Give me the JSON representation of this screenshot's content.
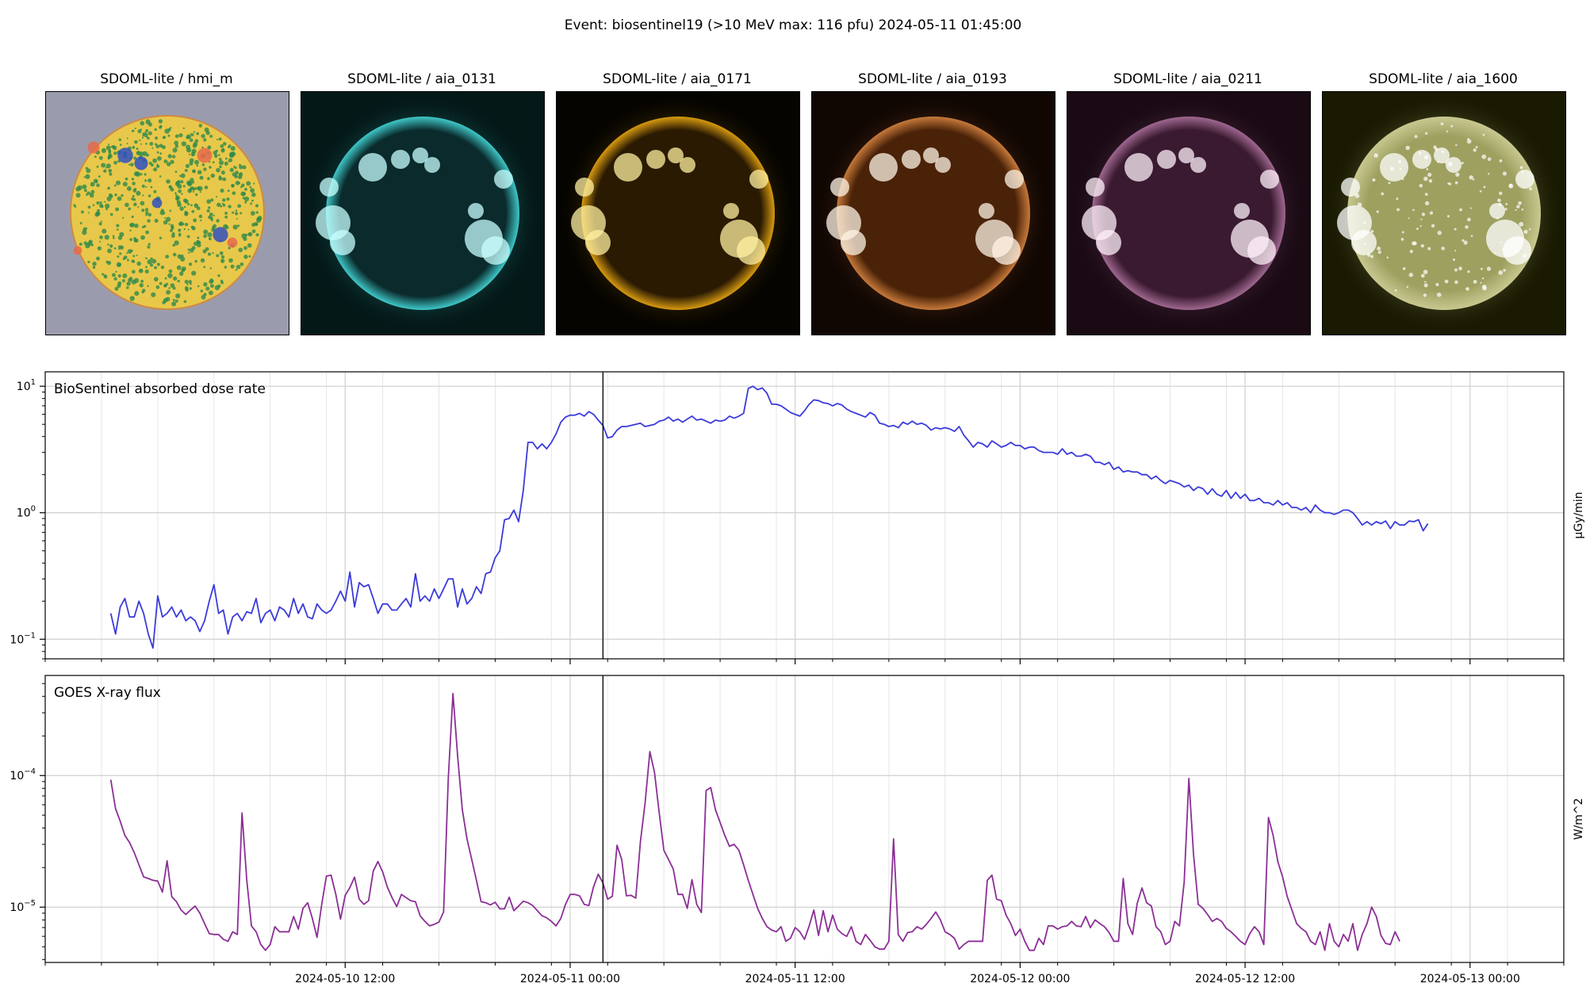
{
  "suptitle": "Event: biosentinel19 (>10 MeV max: 116 pfu) 2024-05-11 01:45:00",
  "images": [
    {
      "title": "SDOML-lite / hmi_m",
      "kind": "hmi",
      "colors": {
        "bg": "#9a9cae",
        "base": "#e8c84a",
        "spot": "#2e8a4a",
        "hot": "#e86a4a",
        "cold": "#3050c0"
      }
    },
    {
      "title": "SDOML-lite / aia_0131",
      "kind": "euv",
      "colors": {
        "bg": "#041818",
        "disk": "#0a2a2c",
        "limb": "#3fc8c8",
        "bright": "#c8ffff"
      }
    },
    {
      "title": "SDOML-lite / aia_0171",
      "kind": "euv",
      "colors": {
        "bg": "#060400",
        "disk": "#2a1a02",
        "limb": "#d89a10",
        "bright": "#fff0a0"
      }
    },
    {
      "title": "SDOML-lite / aia_0193",
      "kind": "euv",
      "colors": {
        "bg": "#100602",
        "disk": "#4a2208",
        "limb": "#c87a3a",
        "bright": "#fff4e6"
      }
    },
    {
      "title": "SDOML-lite / aia_0211",
      "kind": "euv",
      "colors": {
        "bg": "#1a0a14",
        "disk": "#3a1a30",
        "limb": "#a06890",
        "bright": "#fff0fa"
      }
    },
    {
      "title": "SDOML-lite / aia_1600",
      "kind": "uv",
      "colors": {
        "bg": "#1a1a02",
        "disk": "#9ea060",
        "limb": "#c8c890",
        "bright": "#ffffff"
      }
    }
  ],
  "chart_data": [
    {
      "type": "line",
      "title": "BioSentinel absorbed dose rate",
      "ylabel": "µGy/min",
      "yscale": "log",
      "ylim": [
        0.07,
        13
      ],
      "color": "#3b3bdc",
      "event_time": "2024-05-11 01:45",
      "x_start": "2024-05-09 23:30",
      "x_step_minutes": 15,
      "xlim": [
        "2024-05-09 20:00",
        "2024-05-13 05:00"
      ],
      "xticks": [
        "2024-05-10 12:00",
        "2024-05-11 00:00",
        "2024-05-11 12:00",
        "2024-05-12 00:00",
        "2024-05-12 12:00",
        "2024-05-13 00:00"
      ],
      "ytick_labels": [
        "10^-1",
        "10^0",
        "10^1"
      ],
      "ytick_values": [
        0.1,
        1,
        10
      ],
      "y": [
        0.16,
        0.11,
        0.18,
        0.21,
        0.15,
        0.15,
        0.2,
        0.16,
        0.11,
        0.085,
        0.22,
        0.15,
        0.16,
        0.18,
        0.15,
        0.17,
        0.14,
        0.15,
        0.14,
        0.115,
        0.14,
        0.2,
        0.27,
        0.16,
        0.17,
        0.11,
        0.15,
        0.16,
        0.14,
        0.165,
        0.16,
        0.21,
        0.135,
        0.16,
        0.17,
        0.14,
        0.18,
        0.17,
        0.15,
        0.21,
        0.16,
        0.19,
        0.15,
        0.145,
        0.19,
        0.17,
        0.16,
        0.17,
        0.2,
        0.24,
        0.2,
        0.34,
        0.18,
        0.28,
        0.26,
        0.27,
        0.21,
        0.16,
        0.19,
        0.19,
        0.17,
        0.17,
        0.19,
        0.21,
        0.18,
        0.33,
        0.2,
        0.22,
        0.2,
        0.25,
        0.21,
        0.25,
        0.3,
        0.3,
        0.18,
        0.25,
        0.19,
        0.21,
        0.26,
        0.23,
        0.33,
        0.34,
        0.44,
        0.5,
        0.88,
        0.9,
        1.05,
        0.85,
        1.5,
        3.6,
        3.6,
        3.2,
        3.5,
        3.2,
        3.6,
        4.2,
        5.2,
        5.7,
        5.9,
        5.9,
        6.1,
        5.8,
        6.3,
        6.0,
        5.4,
        4.9,
        3.9,
        4.0,
        4.5,
        4.8,
        4.8,
        4.9,
        5.0,
        5.1,
        4.8,
        4.9,
        5.0,
        5.3,
        5.4,
        5.7,
        5.3,
        5.5,
        5.2,
        5.5,
        5.8,
        5.4,
        5.5,
        5.3,
        5.1,
        5.4,
        5.3,
        5.4,
        5.8,
        5.6,
        5.8,
        6.1,
        9.6,
        10.0,
        9.4,
        9.7,
        8.8,
        7.2,
        7.2,
        7.0,
        6.6,
        6.2,
        6.0,
        5.8,
        6.4,
        7.2,
        7.8,
        7.7,
        7.4,
        7.3,
        7.0,
        7.3,
        7.1,
        6.6,
        6.3,
        6.1,
        5.9,
        5.7,
        6.2,
        5.9,
        5.1,
        5.0,
        4.8,
        4.9,
        4.7,
        5.2,
        5.0,
        5.3,
        5.0,
        5.1,
        4.9,
        4.5,
        4.7,
        4.6,
        4.7,
        4.6,
        4.4,
        4.8,
        4.1,
        3.7,
        3.3,
        3.6,
        3.5,
        3.3,
        3.7,
        3.5,
        3.3,
        3.4,
        3.6,
        3.4,
        3.4,
        3.2,
        3.3,
        3.3,
        3.1,
        3.0,
        3.0,
        3.0,
        2.9,
        3.2,
        2.9,
        3.0,
        2.8,
        2.8,
        2.9,
        2.8,
        2.5,
        2.5,
        2.4,
        2.5,
        2.2,
        2.3,
        2.1,
        2.15,
        2.1,
        2.1,
        2.0,
        2.0,
        1.85,
        1.95,
        1.8,
        1.7,
        1.8,
        1.75,
        1.7,
        1.6,
        1.65,
        1.5,
        1.6,
        1.55,
        1.4,
        1.55,
        1.4,
        1.35,
        1.5,
        1.3,
        1.45,
        1.3,
        1.4,
        1.25,
        1.25,
        1.3,
        1.2,
        1.2,
        1.15,
        1.25,
        1.15,
        1.2,
        1.1,
        1.1,
        1.05,
        1.1,
        1.0,
        1.15,
        1.05,
        1.0,
        1.0,
        0.97,
        1.0,
        1.05,
        1.05,
        1.0,
        0.9,
        0.8,
        0.85,
        0.8,
        0.85,
        0.82,
        0.86,
        0.75,
        0.85,
        0.8,
        0.8,
        0.86,
        0.85,
        0.88,
        0.72,
        0.82
      ]
    },
    {
      "type": "line",
      "title": "GOES X-ray flux",
      "ylabel": "W/m^2",
      "yscale": "log",
      "ylim": [
        3.8e-06,
        6e-07
      ],
      "ylim_min": 3.8e-06,
      "ylim_max": 9e-05,
      "color": "#8b2f96",
      "event_time": "2024-05-11 01:45",
      "x_start": "2024-05-09 23:30",
      "x_step_minutes": 15,
      "xlim": [
        "2024-05-09 20:00",
        "2024-05-13 05:00"
      ],
      "xticks": [
        "2024-05-10 12:00",
        "2024-05-11 00:00",
        "2024-05-11 12:00",
        "2024-05-12 00:00",
        "2024-05-12 12:00",
        "2024-05-13 00:00"
      ],
      "ytick_labels": [
        "10^-5",
        "10^-4"
      ],
      "ytick_values": [
        1e-05,
        0.0001
      ],
      "y": [
        9.3e-05,
        5.6e-05,
        4.5e-05,
        3.5e-05,
        3.1e-05,
        2.6e-05,
        2.1e-05,
        1.7e-05,
        1.65e-05,
        1.6e-05,
        1.58e-05,
        1.3e-05,
        2.25e-05,
        1.2e-05,
        1.1e-05,
        9.5e-06,
        8.8e-06,
        9.5e-06,
        1.02e-05,
        9e-06,
        7.5e-06,
        6.3e-06,
        6.2e-06,
        6.2e-06,
        5.7e-06,
        5.5e-06,
        6.5e-06,
        6.2e-06,
        5.2e-05,
        1.6e-05,
        7.2e-06,
        6.5e-06,
        5.2e-06,
        4.7e-06,
        5.2e-06,
        7.1e-06,
        6.5e-06,
        6.5e-06,
        6.5e-06,
        8.5e-06,
        6.8e-06,
        9.8e-06,
        1.08e-05,
        8.2e-06,
        5.9e-06,
        1.05e-05,
        1.72e-05,
        1.75e-05,
        1.25e-05,
        8.1e-06,
        1.23e-05,
        1.41e-05,
        1.69e-05,
        1.15e-05,
        1.05e-05,
        1.12e-05,
        1.88e-05,
        2.22e-05,
        1.85e-05,
        1.42e-05,
        1.18e-05,
        1.01e-05,
        1.25e-05,
        1.18e-05,
        1.12e-05,
        1.1e-05,
        8.6e-06,
        7.8e-06,
        7.2e-06,
        7.4e-06,
        7.7e-06,
        9.2e-06,
        9.5e-05,
        0.00042,
        0.00014,
        5.5e-05,
        3.3e-05,
        2.3e-05,
        1.6e-05,
        1.1e-05,
        1.08e-05,
        1.04e-05,
        1.09e-05,
        9.7e-06,
        9.7e-06,
        1.19e-05,
        9.4e-06,
        1.02e-05,
        1.11e-05,
        1.08e-05,
        1.03e-05,
        9.4e-06,
        8.6e-06,
        8.3e-06,
        7.8e-06,
        7.2e-06,
        8.2e-06,
        1.05e-05,
        1.25e-05,
        1.25e-05,
        1.22e-05,
        1.05e-05,
        1.03e-05,
        1.43e-05,
        1.78e-05,
        1.53e-05,
        1.15e-05,
        1.21e-05,
        2.95e-05,
        2.3e-05,
        1.22e-05,
        1.23e-05,
        1.17e-05,
        3.15e-05,
        6.2e-05,
        0.000152,
        0.000105,
        5.2e-05,
        2.7e-05,
        2.3e-05,
        1.95e-05,
        1.25e-05,
        1.25e-05,
        9.8e-06,
        1.62e-05,
        1.05e-05,
        9.1e-06,
        7.7e-05,
        8.1e-05,
        5.5e-05,
        4.4e-05,
        3.5e-05,
        2.9e-05,
        3e-05,
        2.7e-05,
        2.1e-05,
        1.6e-05,
        1.25e-05,
        9.8e-06,
        8.2e-06,
        7.1e-06,
        6.7e-06,
        6.5e-06,
        7.1e-06,
        5.5e-06,
        5.8e-06,
        7e-06,
        6.5e-06,
        5.7e-06,
        7.2e-06,
        9.5e-06,
        6.1e-06,
        9.4e-06,
        6.5e-06,
        8.7e-06,
        6.8e-06,
        6.3e-06,
        6e-06,
        7.1e-06,
        5.5e-06,
        5.2e-06,
        6.2e-06,
        5.6e-06,
        5e-06,
        4.8e-06,
        4.8e-06,
        5.5e-06,
        3.3e-05,
        6.2e-06,
        5.5e-06,
        6.4e-06,
        6.5e-06,
        7.1e-06,
        6.8e-06,
        7.4e-06,
        8.2e-06,
        9.2e-06,
        8e-06,
        6.5e-06,
        6.2e-06,
        5.8e-06,
        4.8e-06,
        5.2e-06,
        5.5e-06,
        5.5e-06,
        5.5e-06,
        5.5e-06,
        1.6e-05,
        1.75e-05,
        1.15e-05,
        1.12e-05,
        8.7e-06,
        7.5e-06,
        6.1e-06,
        6.8e-06,
        5.5e-06,
        4.7e-06,
        4.7e-06,
        5.8e-06,
        5.2e-06,
        7.2e-06,
        7.2e-06,
        6.8e-06,
        7.1e-06,
        7.2e-06,
        7.8e-06,
        7.2e-06,
        7.1e-06,
        8.5e-06,
        7e-06,
        8e-06,
        7.5e-06,
        7.1e-06,
        6.4e-06,
        5.5e-06,
        5.5e-06,
        1.65e-05,
        7.5e-06,
        6.2e-06,
        1.07e-05,
        1.4e-05,
        1.08e-05,
        1.02e-05,
        7.1e-06,
        6.5e-06,
        5.2e-06,
        5.5e-06,
        7.8e-06,
        7.2e-06,
        1.55e-05,
        9.5e-05,
        2.5e-05,
        1.05e-05,
        9.8e-06,
        8.8e-06,
        7.8e-06,
        8.2e-06,
        7.8e-06,
        6.9e-06,
        6.5e-06,
        6e-06,
        5.5e-06,
        5.2e-06,
        6.3e-06,
        7.1e-06,
        6.5e-06,
        5.2e-06,
        4.8e-05,
        3.5e-05,
        2.2e-05,
        1.7e-05,
        1.2e-05,
        9.5e-06,
        7.5e-06,
        6.9e-06,
        6.5e-06,
        5.5e-06,
        5.2e-06,
        6.5e-06,
        4.7e-06,
        7.5e-06,
        5.5e-06,
        5e-06,
        6.2e-06,
        5.5e-06,
        7.5e-06,
        4.7e-06,
        6.2e-06,
        7.5e-06,
        1e-05,
        8.5e-06,
        6.1e-06,
        5.3e-06,
        5.2e-06,
        6.5e-06,
        5.5e-06
      ]
    }
  ]
}
